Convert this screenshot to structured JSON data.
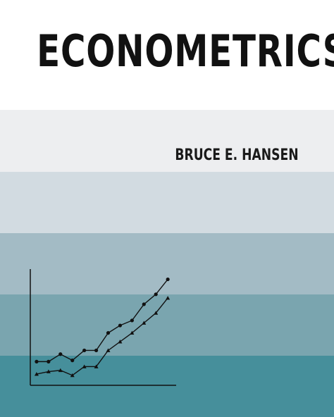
{
  "cover": {
    "title": "ECONOMETRICS",
    "author": "BRUCE E. HANSEN",
    "band_colors": [
      "#ffffff",
      "#edeef0",
      "#d2dbe1",
      "#a3bbc5",
      "#7aa5af",
      "#468f9b"
    ],
    "ink_color": "#111111"
  },
  "chart_data": {
    "type": "line",
    "title": "",
    "xlabel": "",
    "ylabel": "",
    "x": [
      1,
      2,
      3,
      4,
      5,
      6,
      7,
      8,
      9,
      10,
      11,
      12,
      13
    ],
    "xlim": [
      0,
      14
    ],
    "ylim": [
      0,
      10
    ],
    "grid": false,
    "series": [
      {
        "marker": "circle",
        "values": [
          1.9,
          1.9,
          2.5,
          2.0,
          2.8,
          2.8,
          4.2,
          4.8,
          5.2,
          6.5,
          7.3,
          8.5,
          null
        ]
      },
      {
        "marker": "triangle",
        "values": [
          0.9,
          1.1,
          1.2,
          0.8,
          1.5,
          1.5,
          2.8,
          3.5,
          4.2,
          5.0,
          5.8,
          7.0,
          null
        ]
      }
    ]
  }
}
